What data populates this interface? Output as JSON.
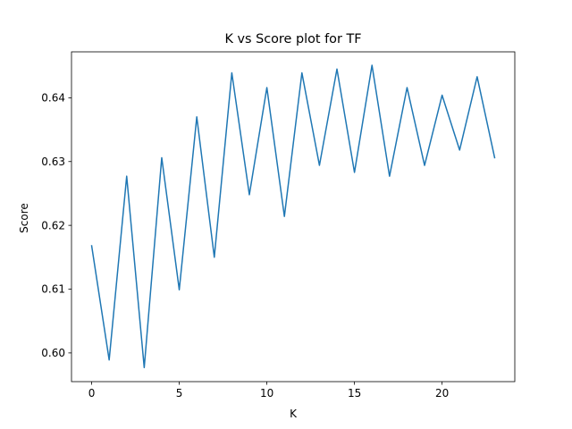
{
  "chart_data": {
    "type": "line",
    "title": "K vs Score plot for TF",
    "xlabel": "K",
    "ylabel": "Score",
    "xlim": [
      -1.15,
      24.15
    ],
    "ylim": [
      0.5955,
      0.6472
    ],
    "xticks": [
      0,
      5,
      10,
      15,
      20
    ],
    "xtick_labels": [
      "0",
      "5",
      "10",
      "15",
      "20"
    ],
    "yticks": [
      0.6,
      0.61,
      0.62,
      0.63,
      0.64
    ],
    "ytick_labels": [
      "0.60",
      "0.61",
      "0.62",
      "0.63",
      "0.64"
    ],
    "grid": false,
    "legend": "none",
    "series": [
      {
        "color": "#1f77b4",
        "x": [
          0,
          1,
          2,
          3,
          4,
          5,
          6,
          7,
          8,
          9,
          10,
          11,
          12,
          13,
          14,
          15,
          16,
          17,
          18,
          19,
          20,
          21,
          22,
          23
        ],
        "y": [
          0.6168,
          0.5989,
          0.6277,
          0.5977,
          0.6306,
          0.6099,
          0.637,
          0.615,
          0.6439,
          0.6248,
          0.6416,
          0.6214,
          0.6439,
          0.6294,
          0.6445,
          0.6283,
          0.6451,
          0.6277,
          0.6416,
          0.6294,
          0.6404,
          0.6318,
          0.6433,
          0.6306
        ]
      }
    ]
  }
}
